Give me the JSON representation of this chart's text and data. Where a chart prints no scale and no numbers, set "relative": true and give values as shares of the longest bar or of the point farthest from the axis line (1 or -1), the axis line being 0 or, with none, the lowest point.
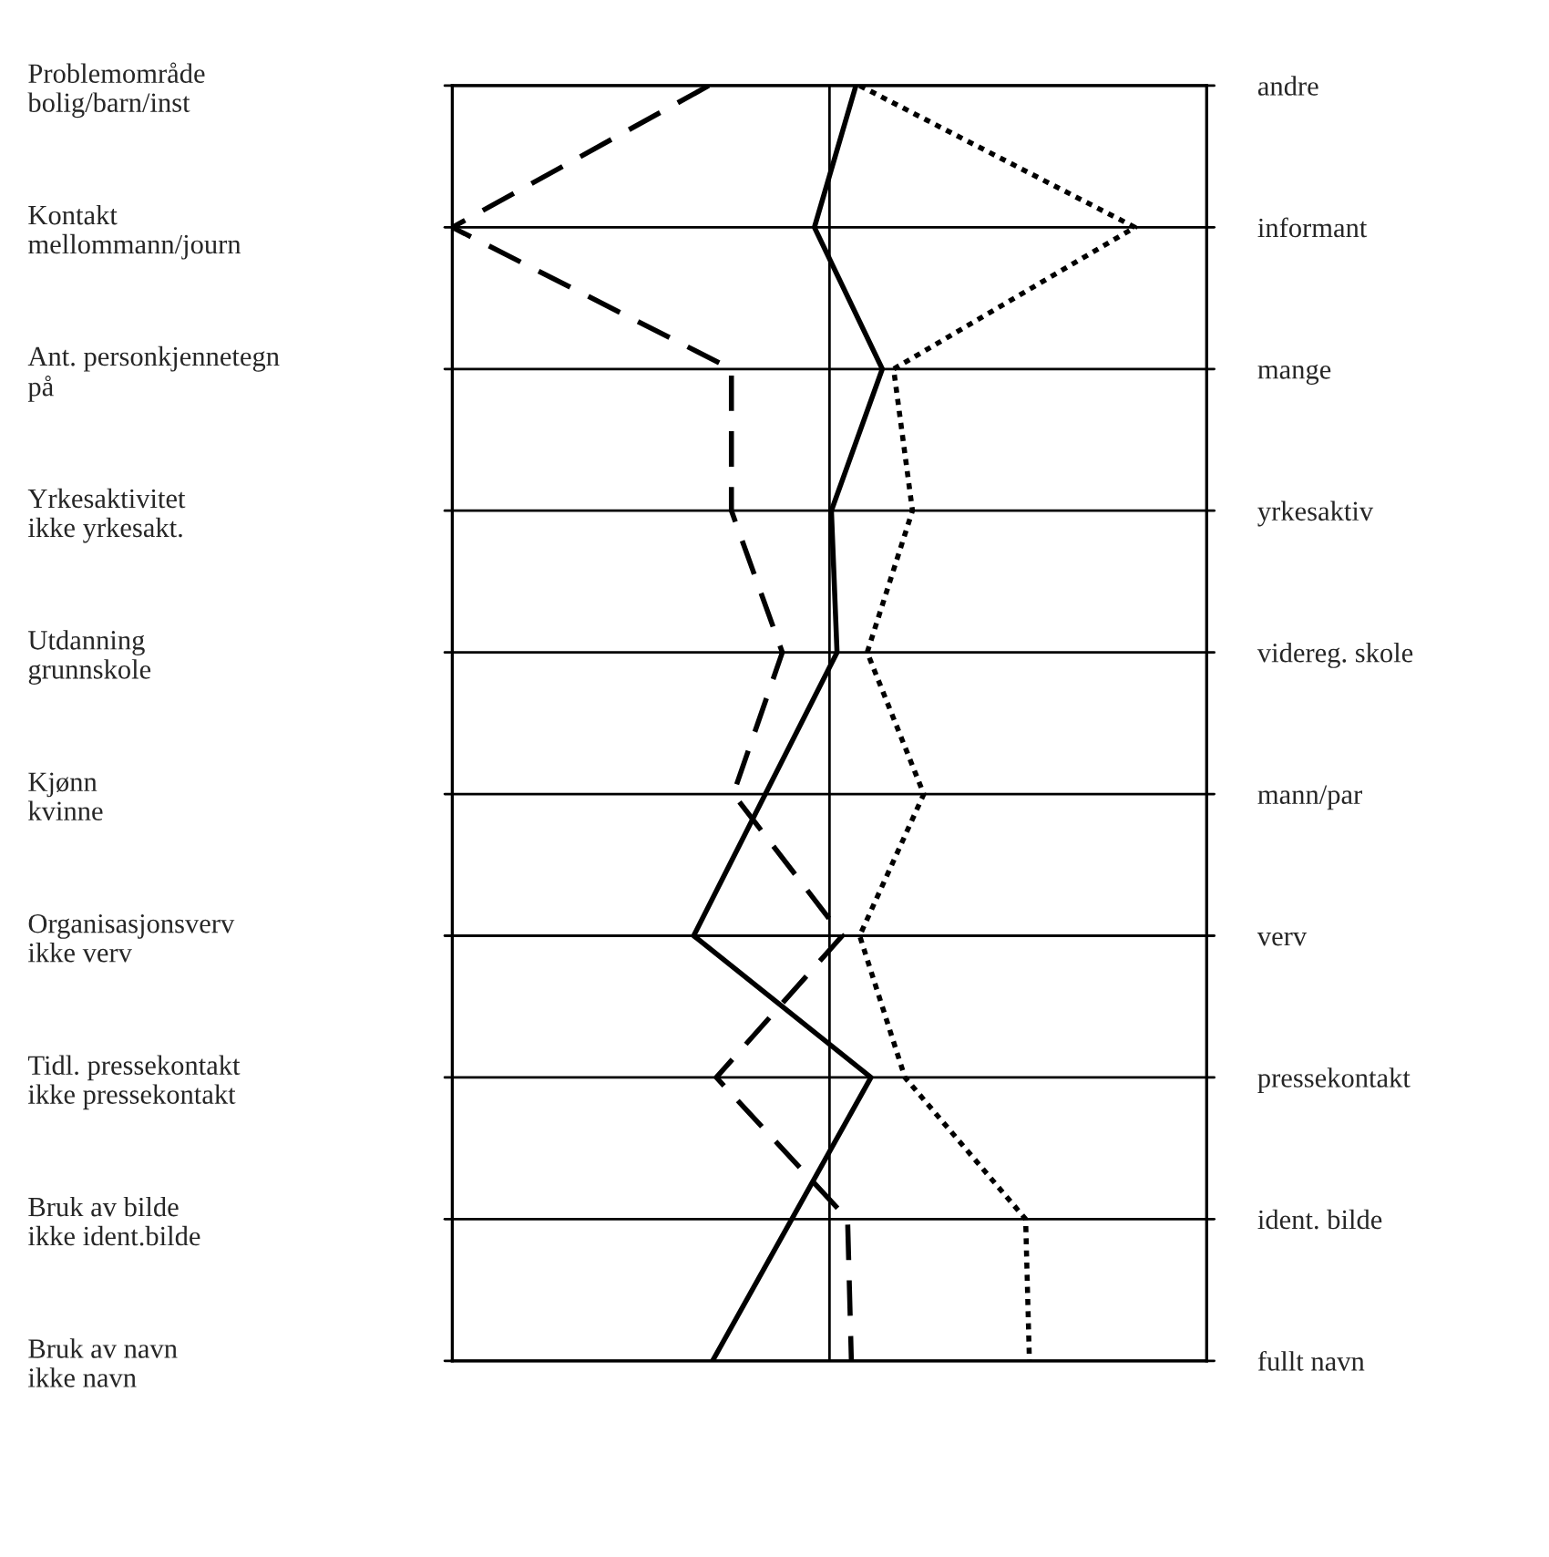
{
  "chart_data": {
    "type": "line",
    "orientation": "horizontal",
    "relative": true,
    "grid": "y",
    "categories": [
      "Problemområde\nbolig/barn/inst",
      "Kontakt\nmellommann/journ",
      "Ant. personkjennetegn\npå",
      "Yrkesaktivitet\nikke yrkesakt.",
      "Utdanning\ngrunnskole",
      "Kjønn\nkvinne",
      "Organisasjonsverv\nikke verv",
      "Tidl. pressekontakt\nikke pressekontakt",
      "Bruk av bilde\nikke ident.bilde",
      "Bruk av navn\nikke navn"
    ],
    "y2_categories": [
      "andre",
      "informant",
      "mange",
      "yrkesaktiv",
      "videreg. skole",
      "mann/par",
      "verv",
      "pressekontakt",
      "ident. bilde",
      "fullt navn"
    ],
    "series": [
      {
        "color": "#000000",
        "line_style": "dashed",
        "values": [
          -0.32,
          -1,
          -0.26,
          -0.26,
          -0.125,
          -0.255,
          0.034,
          -0.3,
          0.048,
          0.058
        ]
      },
      {
        "color": "#000000",
        "line_style": "dotted",
        "values": [
          0.08,
          0.81,
          0.17,
          0.22,
          0.1,
          0.25,
          0.08,
          0.2,
          0.52,
          0.53
        ]
      },
      {
        "color": "#000000",
        "line_style": "solid",
        "values": [
          0.07,
          -0.04,
          0.14,
          0.005,
          0.02,
          -0.17,
          -0.36,
          0.11,
          -0.1,
          -0.31
        ]
      }
    ]
  }
}
